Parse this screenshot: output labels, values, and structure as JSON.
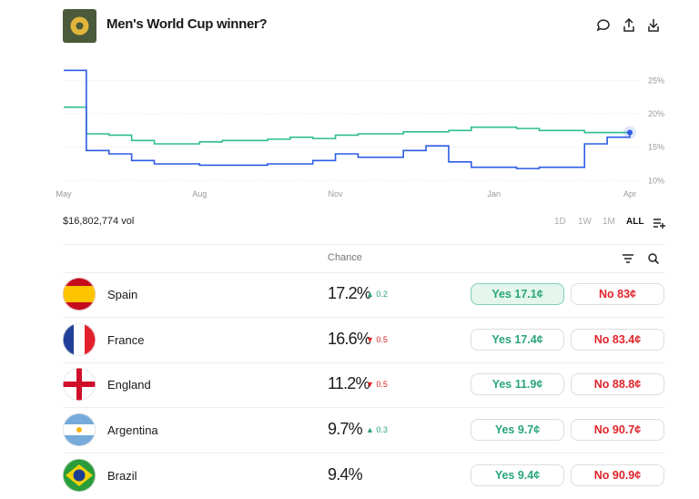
{
  "header": {
    "title": "Men's World Cup winner?"
  },
  "chart_data": {
    "type": "line",
    "categories": [
      "May",
      null,
      null,
      null,
      null,
      null,
      "Aug",
      null,
      null,
      null,
      null,
      null,
      "Nov",
      null,
      null,
      null,
      null,
      null,
      null,
      "Jan",
      null,
      null,
      null,
      null,
      null,
      "Apr"
    ],
    "series": [
      {
        "color": "#2fbf8a",
        "values": [
          21,
          17,
          16.8,
          16,
          15.5,
          15.5,
          15.8,
          16,
          16,
          16.2,
          16.5,
          16.3,
          16.8,
          17,
          17,
          17.3,
          17.3,
          17.5,
          18,
          18,
          17.8,
          17.5,
          17.5,
          17.2,
          17.2,
          17.2
        ]
      },
      {
        "color": "#2d5be3",
        "values": [
          26.5,
          14.5,
          14,
          13,
          12.5,
          12.5,
          12.3,
          12.3,
          12.3,
          12.5,
          12.5,
          13,
          14,
          13.5,
          13.5,
          14.5,
          15.2,
          12.8,
          12,
          12,
          11.8,
          12,
          12,
          15.5,
          16.5,
          17.2
        ]
      }
    ],
    "ylim": [
      9.5,
      27.5
    ],
    "yticks": [
      {
        "value": 10,
        "label": "10%"
      },
      {
        "value": 15,
        "label": "15%"
      },
      {
        "value": 20,
        "label": "20%"
      },
      {
        "value": 25,
        "label": "25%"
      }
    ],
    "grid": true
  },
  "volume": "$16,802,774 vol",
  "ranges": [
    "1D",
    "1W",
    "1M",
    "ALL"
  ],
  "table": {
    "header": "Chance",
    "rows": [
      {
        "name": "Spain",
        "chance": "17.2%",
        "change": {
          "direction": "up",
          "text": "0.2"
        },
        "yes": "Yes 17.1¢",
        "no": "No 83¢"
      },
      {
        "name": "France",
        "chance": "16.6%",
        "change": {
          "direction": "down",
          "text": "0.5"
        },
        "yes": "Yes 17.4¢",
        "no": "No 83.4¢"
      },
      {
        "name": "England",
        "chance": "11.2%",
        "change": {
          "direction": "down",
          "text": "0.5"
        },
        "yes": "Yes 11.9¢",
        "no": "No 88.8¢"
      },
      {
        "name": "Argentina",
        "chance": "9.7%",
        "change": {
          "direction": "up",
          "text": "0.3"
        },
        "yes": "Yes 9.7¢",
        "no": "No 90.7¢"
      },
      {
        "name": "Brazil",
        "chance": "9.4%",
        "yes": "Yes 9.4¢",
        "no": "No 90.9¢"
      }
    ]
  }
}
